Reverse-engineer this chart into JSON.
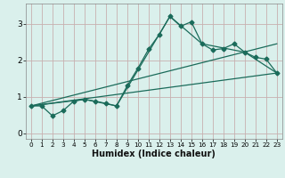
{
  "xlabel": "Humidex (Indice chaleur)",
  "background_color": "#daf0ec",
  "grid_color": "#c8b0b0",
  "line_color": "#1a6b5a",
  "spine_color": "#888888",
  "xlim": [
    -0.5,
    23.5
  ],
  "ylim": [
    -0.15,
    3.55
  ],
  "xticks": [
    0,
    1,
    2,
    3,
    4,
    5,
    6,
    7,
    8,
    9,
    10,
    11,
    12,
    13,
    14,
    15,
    16,
    17,
    18,
    19,
    20,
    21,
    22,
    23
  ],
  "yticks": [
    0,
    1,
    2,
    3
  ],
  "curve_main_x": [
    0,
    1,
    2,
    3,
    4,
    5,
    6,
    7,
    8,
    9,
    10,
    11,
    12,
    13,
    14,
    15,
    16,
    17,
    18,
    19,
    20,
    21,
    22,
    23
  ],
  "curve_main_y": [
    0.75,
    0.75,
    0.48,
    0.62,
    0.88,
    0.93,
    0.88,
    0.82,
    0.75,
    1.3,
    1.78,
    2.3,
    2.7,
    3.2,
    2.93,
    3.05,
    2.45,
    2.28,
    2.32,
    2.45,
    2.22,
    2.08,
    2.03,
    1.65
  ],
  "line1_x": [
    0,
    23
  ],
  "line1_y": [
    0.75,
    1.65
  ],
  "line2_x": [
    0,
    23
  ],
  "line2_y": [
    0.75,
    2.45
  ],
  "envelope_x": [
    0,
    5,
    8,
    13,
    16,
    20,
    23
  ],
  "envelope_y": [
    0.75,
    0.93,
    0.75,
    3.2,
    2.45,
    2.22,
    1.65
  ]
}
